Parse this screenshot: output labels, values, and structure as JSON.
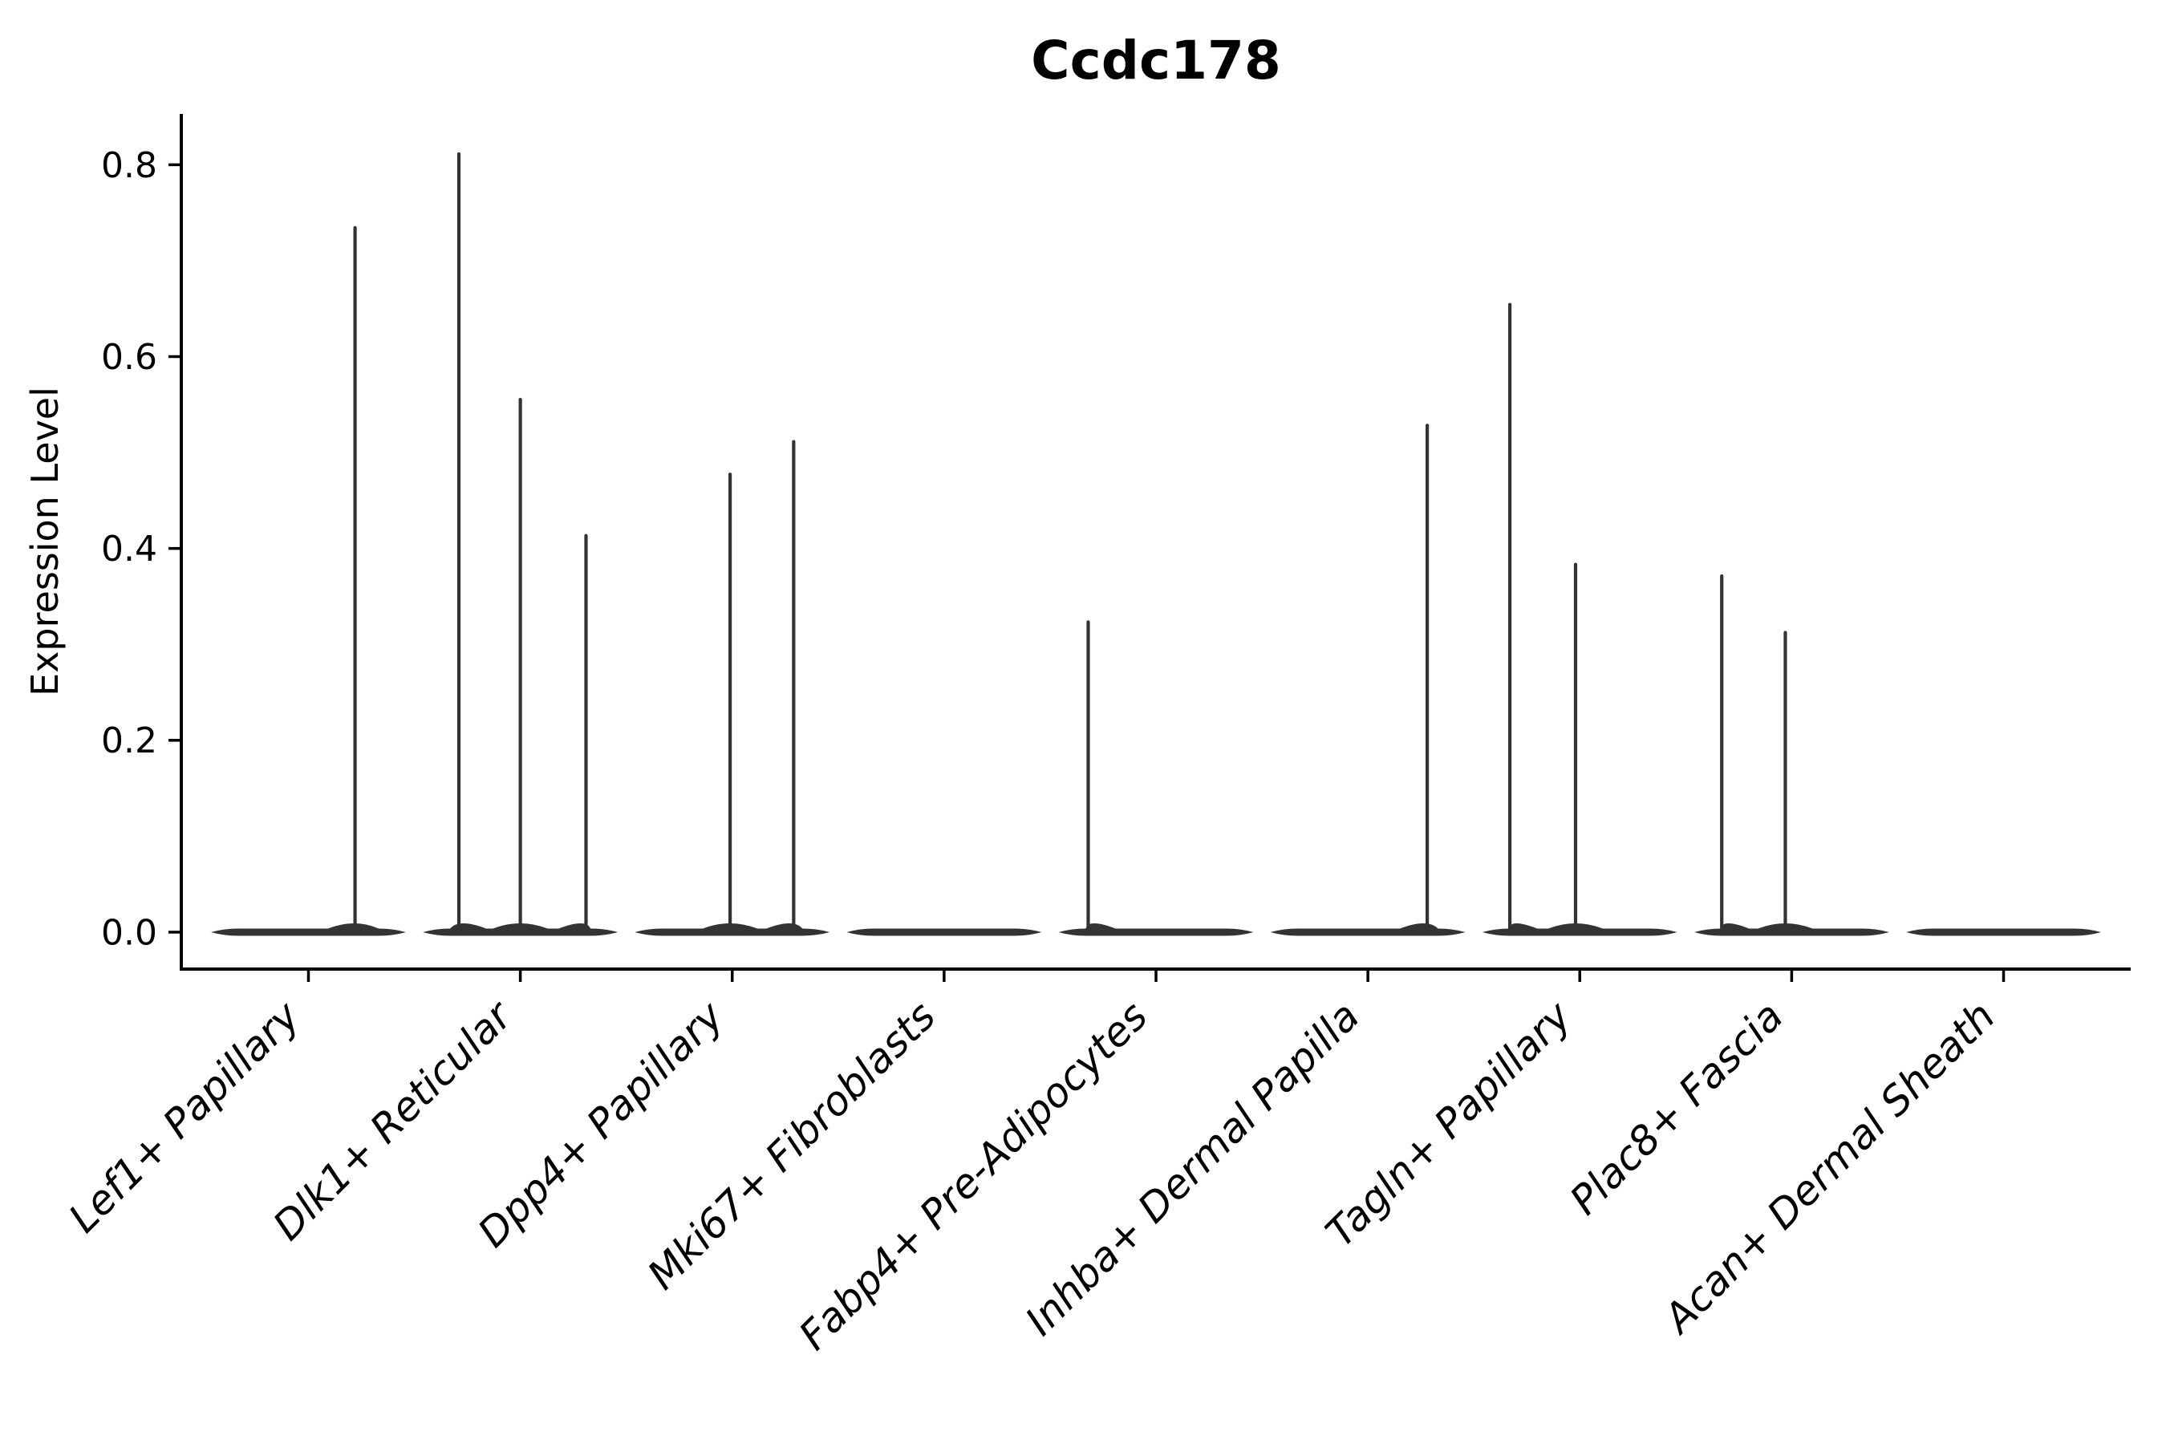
{
  "figure": {
    "background": "#ffffff"
  },
  "chart_data": {
    "type": "violin",
    "title": "Ccdc178",
    "xlabel": "",
    "ylabel": "Expression Level",
    "categories": [
      "Lef1+ Papillary",
      "Dlk1+ Reticular",
      "Dpp4+ Papillary",
      "Mki67+ Fibroblasts",
      "Fabp4+ Pre-Adipocytes",
      "Inhba+ Dermal Papilla",
      "Tagln+ Papillary",
      "Plac8+ Fascia",
      "Acan+ Dermal Sheath"
    ],
    "series": [
      {
        "category": "Lef1+ Papillary",
        "baseline_value": 0.0,
        "spikes": [
          {
            "value": 0.736,
            "dx": 0.22
          }
        ]
      },
      {
        "category": "Dlk1+ Reticular",
        "baseline_value": 0.0,
        "spikes": [
          {
            "value": 0.813,
            "dx": -0.29
          },
          {
            "value": 0.557,
            "dx": 0.0
          },
          {
            "value": 0.415,
            "dx": 0.31
          }
        ]
      },
      {
        "category": "Dpp4+ Papillary",
        "baseline_value": 0.0,
        "spikes": [
          {
            "value": 0.479,
            "dx": -0.01
          },
          {
            "value": 0.513,
            "dx": 0.29
          }
        ]
      },
      {
        "category": "Mki67+ Fibroblasts",
        "baseline_value": 0.0,
        "spikes": []
      },
      {
        "category": "Fabp4+ Pre-Adipocytes",
        "baseline_value": 0.0,
        "spikes": [
          {
            "value": 0.325,
            "dx": -0.32
          }
        ]
      },
      {
        "category": "Inhba+ Dermal Papilla",
        "baseline_value": 0.0,
        "spikes": [
          {
            "value": 0.53,
            "dx": 0.28
          }
        ]
      },
      {
        "category": "Tagln+ Papillary",
        "baseline_value": 0.0,
        "spikes": [
          {
            "value": 0.656,
            "dx": -0.33
          },
          {
            "value": 0.385,
            "dx": -0.02
          }
        ]
      },
      {
        "category": "Plac8+ Fascia",
        "baseline_value": 0.0,
        "spikes": [
          {
            "value": 0.373,
            "dx": -0.33
          },
          {
            "value": 0.314,
            "dx": -0.03
          }
        ]
      },
      {
        "category": "Acan+ Dermal Sheath",
        "baseline_value": 0.0,
        "spikes": []
      }
    ],
    "yticks": [
      0.0,
      0.2,
      0.4,
      0.6,
      0.8
    ],
    "ylim": [
      -0.0385,
      0.853
    ],
    "xlim": [
      -0.6,
      8.6
    ],
    "grid": false,
    "legend": null,
    "xticklabel_rotation_deg": 45,
    "violin_width_frac": 0.92,
    "colors": {
      "violin": "#333333",
      "axis": "#000000",
      "text": "#000000"
    }
  }
}
